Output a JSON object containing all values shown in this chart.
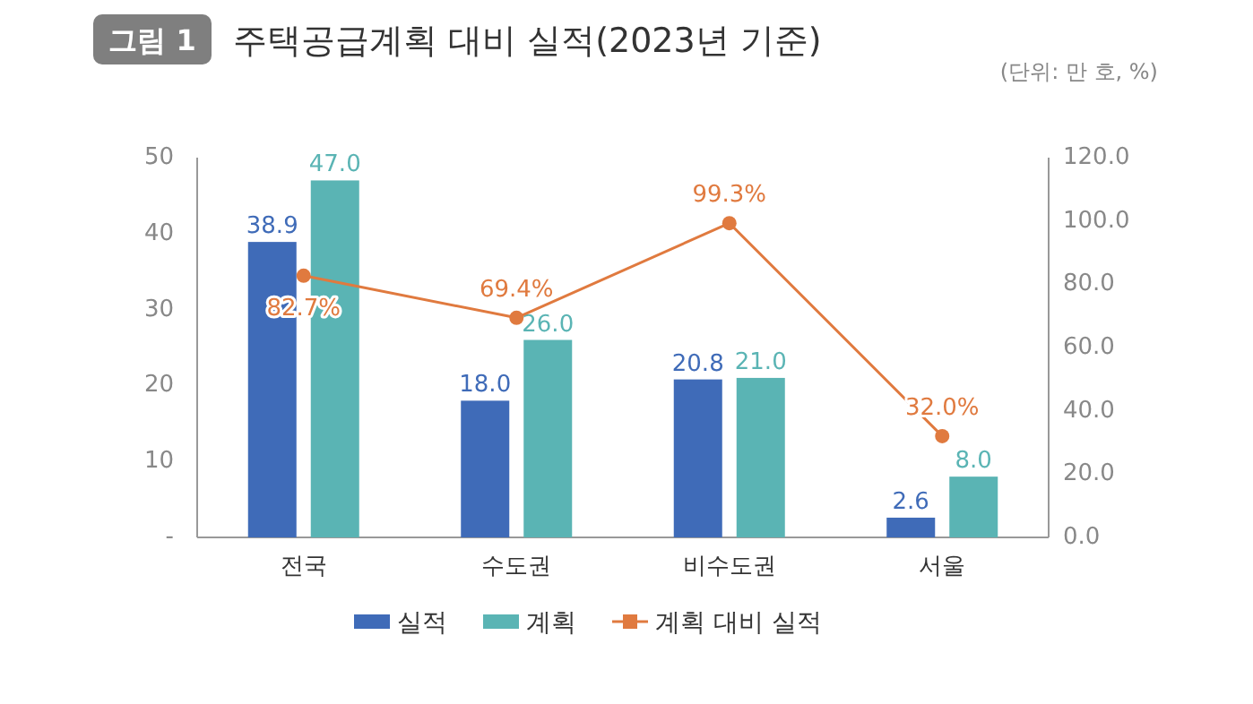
{
  "chart_data": {
    "type": "bar",
    "title": "주택공급계획 대비 실적(2023년 기준)",
    "annotations": [
      "그림 1",
      "(단위: 만 호, %)"
    ],
    "categories": [
      "전국",
      "수도권",
      "비수도권",
      "서울"
    ],
    "series": [
      {
        "name": "실적",
        "color": "#3f6bb8",
        "values": [
          38.9,
          18.0,
          20.8,
          2.6
        ],
        "value_labels": [
          "38.9",
          "18.0",
          "20.8",
          "2.6"
        ]
      },
      {
        "name": "계획",
        "color": "#5ab4b4",
        "values": [
          47.0,
          26.0,
          21.0,
          8.0
        ],
        "value_labels": [
          "47.0",
          "26.0",
          "21.0",
          "8.0"
        ]
      },
      {
        "name": "계획 대비 실적",
        "type": "line",
        "axis": "y2",
        "color": "#e07a3f",
        "marker": "circle",
        "values": [
          82.7,
          69.4,
          99.3,
          32.0
        ],
        "value_labels": [
          "82.7%",
          "69.4%",
          "99.3%",
          "32.0%"
        ]
      }
    ],
    "ylim": [
      0,
      50
    ],
    "yticks": [
      {
        "value": 0,
        "label": "-"
      },
      10,
      20,
      30,
      40,
      50
    ],
    "y2lim": [
      0,
      120
    ],
    "y2ticks": [
      {
        "value": 0,
        "label": "0.0"
      },
      {
        "value": 20,
        "label": "20.0"
      },
      {
        "value": 40,
        "label": "40.0"
      },
      {
        "value": 60,
        "label": "60.0"
      },
      {
        "value": 80,
        "label": "80.0"
      },
      {
        "value": 100,
        "label": "100.0"
      },
      {
        "value": 120,
        "label": "120.0"
      }
    ],
    "legend": "bottom"
  }
}
